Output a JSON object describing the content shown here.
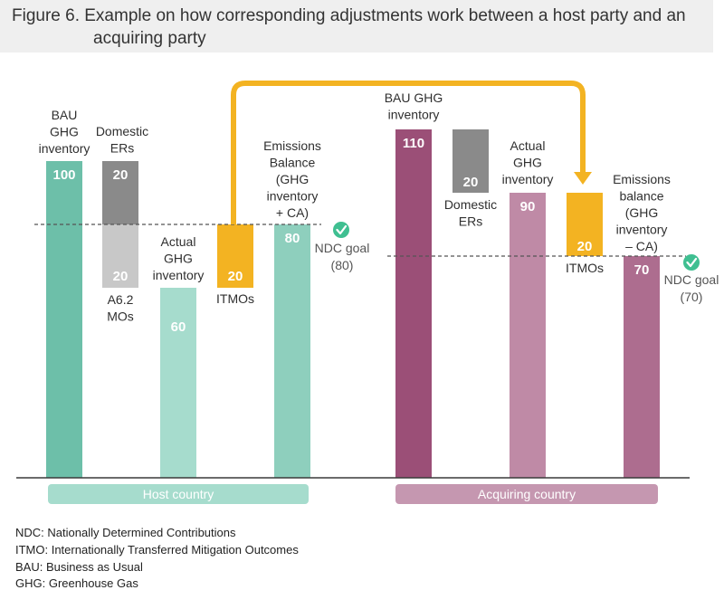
{
  "title": {
    "line1": "Figure 6. Example on how corresponding adjustments work between a host party and an",
    "line2": "acquiring party"
  },
  "colors": {
    "host_dark": "#6dbfa9",
    "host_light": "#a6dccd",
    "host_mid": "#8ecfbd",
    "grey_dark": "#8a8a8a",
    "grey_light": "#c8c8c8",
    "itmo": "#f3b322",
    "acq_dark": "#9b4f77",
    "acq_light": "#bf8aa6",
    "acq_mid": "#ad6d8f",
    "check": "#3fbf91",
    "host_band": "#a6dccd",
    "acq_band": "#c597b0"
  },
  "chart_data": {
    "type": "bar",
    "title": "Figure 6. Example on how corresponding adjustments work between a host party and an acquiring party",
    "ylim": [
      0,
      110
    ],
    "groups": [
      {
        "name": "Host country",
        "ndc_goal": 80,
        "ndc_label": "NDC goal",
        "ndc_value_label": "(80)",
        "bars": [
          {
            "id": "h-bau",
            "label": [
              "BAU",
              "GHG",
              "inventory"
            ],
            "value": 100,
            "display": "100",
            "kind": "total",
            "color": "host_dark"
          },
          {
            "id": "h-der",
            "label": [
              "Domestic",
              "ERs"
            ],
            "value": 20,
            "display": "20",
            "kind": "step-down",
            "from": 100,
            "to": 80,
            "color": "grey_dark"
          },
          {
            "id": "h-a62",
            "label": [
              "A6.2",
              "MOs"
            ],
            "value": 20,
            "display": "20",
            "kind": "step-down",
            "from": 80,
            "to": 60,
            "color": "grey_light"
          },
          {
            "id": "h-actual",
            "label": [
              "Actual",
              "GHG",
              "inventory"
            ],
            "value": 60,
            "display": "60",
            "kind": "total",
            "color": "host_light"
          },
          {
            "id": "h-itmo",
            "label": [
              "ITMOs"
            ],
            "value": 20,
            "display": "20",
            "kind": "step-up",
            "from": 60,
            "to": 80,
            "color": "itmo"
          },
          {
            "id": "h-bal",
            "label": [
              "Emissions",
              "Balance",
              "(GHG",
              "inventory",
              "+ CA)"
            ],
            "value": 80,
            "display": "80",
            "kind": "total",
            "color": "host_mid"
          }
        ]
      },
      {
        "name": "Acquiring country",
        "ndc_goal": 70,
        "ndc_label": "NDC goal",
        "ndc_value_label": "(70)",
        "bars": [
          {
            "id": "a-bau",
            "label": [
              "BAU GHG",
              "inventory"
            ],
            "value": 110,
            "display": "110",
            "kind": "total",
            "color": "acq_dark"
          },
          {
            "id": "a-der",
            "label": [
              "Domestic",
              "ERs"
            ],
            "value": 20,
            "display": "20",
            "kind": "step-down",
            "from": 110,
            "to": 90,
            "color": "grey_dark"
          },
          {
            "id": "a-actual",
            "label": [
              "Actual",
              "GHG",
              "inventory"
            ],
            "value": 90,
            "display": "90",
            "kind": "total",
            "color": "acq_light"
          },
          {
            "id": "a-itmo",
            "label": [
              "ITMOs"
            ],
            "value": 20,
            "display": "20",
            "kind": "step-down",
            "from": 90,
            "to": 70,
            "color": "itmo"
          },
          {
            "id": "a-bal",
            "label": [
              "Emissions",
              "balance",
              "(GHG",
              "inventory",
              "– CA)"
            ],
            "value": 70,
            "display": "70",
            "kind": "total",
            "color": "acq_mid"
          }
        ]
      }
    ],
    "annotations": [
      "ITMO transfer arrow from host country ITMOs to acquiring country ITMOs"
    ]
  },
  "footnotes": [
    "NDC: Nationally Determined Contributions",
    "ITMO: Internationally Transferred Mitigation Outcomes",
    "BAU: Business as Usual",
    "GHG: Greenhouse Gas"
  ]
}
